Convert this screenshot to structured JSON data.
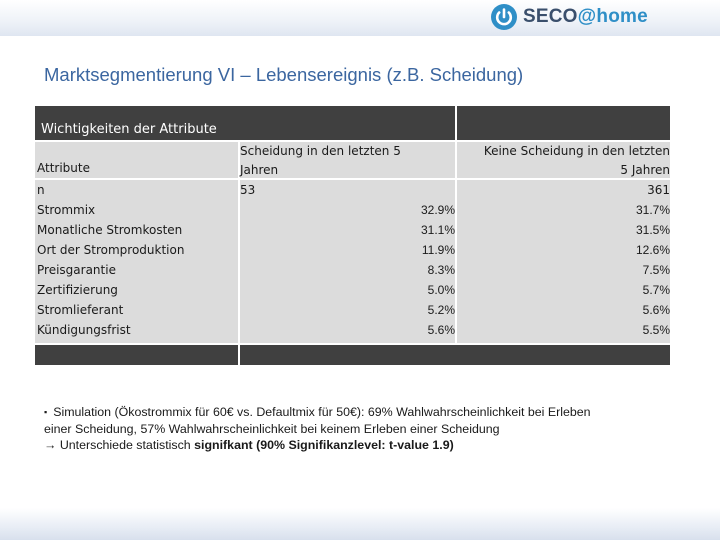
{
  "logo": {
    "brand": "SECO",
    "suffix": "@home"
  },
  "title": "Marktsegmentierung VI – Lebensereignis (z.B. Scheidung)",
  "table": {
    "section_header": "Wichtigkeiten der Attribute",
    "col_attribute": "Attribute",
    "col_1_line1": "Scheidung in den letzten 5",
    "col_1_line2": "Jahren",
    "col_2_line1": "Keine Scheidung in den letzten",
    "col_2_line2": "5 Jahren",
    "rows": [
      {
        "label": "n",
        "c1": "53",
        "c2": "361"
      },
      {
        "label": "Strommix",
        "c1": "32.9%",
        "c2": "31.7%"
      },
      {
        "label": "Monatliche Stromkosten",
        "c1": "31.1%",
        "c2": "31.5%"
      },
      {
        "label": "Ort der Stromproduktion",
        "c1": "11.9%",
        "c2": "12.6%"
      },
      {
        "label": "Preisgarantie",
        "c1": "8.3%",
        "c2": "7.5%"
      },
      {
        "label": "Zertifizierung",
        "c1": "5.0%",
        "c2": "5.7%"
      },
      {
        "label": "Stromlieferant",
        "c1": "5.2%",
        "c2": "5.6%"
      },
      {
        "label": "Kündigungsfrist",
        "c1": "5.6%",
        "c2": "5.5%"
      }
    ]
  },
  "note": {
    "bullet": "▪",
    "line1": "Simulation (Ökostrommix für 60€ vs. Defaultmix für 50€): 69% Wahlwahrscheinlichkeit bei Erleben",
    "line2": "einer Scheidung, 57% Wahlwahrscheinlichkeit bei keinem Erleben einer Scheidung",
    "arrow": "→",
    "line3_plain": "Unterschiede statistisch ",
    "line3_bold": "signifkant (90%  Signifikanzlevel: t-value 1.9)"
  },
  "colors": {
    "title": "#3b66a0",
    "dark_header": "#404040",
    "gray_cell": "#dcdcdc",
    "logo_blue": "#2f8fc7"
  }
}
